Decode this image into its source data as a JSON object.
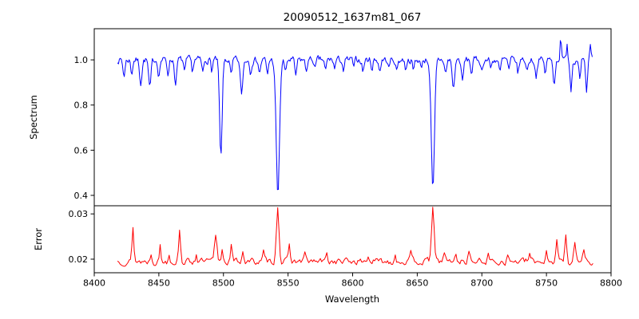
{
  "background": "#ffffff",
  "chart_data": [
    {
      "type": "line",
      "title": "20090512_1637m81_067",
      "ylabel": "Spectrum",
      "xlabel": "",
      "color": "#0000ff",
      "xlim": [
        8400,
        8800
      ],
      "ylim": [
        0.354,
        1.138
      ],
      "x_range": [
        8418,
        8786
      ],
      "sample_step": 0.75,
      "baseline": 1.0,
      "noise_amplitude": 0.013,
      "noise_seed": 7,
      "y_ticks": [
        {
          "v": 0.4,
          "label": "0.4"
        },
        {
          "v": 0.6,
          "label": "0.6"
        },
        {
          "v": 0.8,
          "label": "0.8"
        },
        {
          "v": 1.0,
          "label": "1.0"
        }
      ],
      "absorption_lines": [
        [
          8498.0,
          0.44,
          1.0
        ],
        [
          8542.1,
          0.6,
          1.3
        ],
        [
          8662.1,
          0.585,
          1.25
        ],
        [
          8423,
          0.07,
          0.8
        ],
        [
          8429,
          0.06,
          0.7
        ],
        [
          8436,
          0.1,
          0.9
        ],
        [
          8443,
          0.13,
          0.9
        ],
        [
          8450,
          0.07,
          0.7
        ],
        [
          8457,
          0.06,
          0.7
        ],
        [
          8463,
          0.11,
          0.8
        ],
        [
          8470,
          0.06,
          0.7
        ],
        [
          8476,
          0.05,
          0.7
        ],
        [
          8484,
          0.06,
          0.7
        ],
        [
          8491,
          0.05,
          0.6
        ],
        [
          8506,
          0.07,
          0.8
        ],
        [
          8514,
          0.15,
          1.0
        ],
        [
          8521,
          0.05,
          0.7
        ],
        [
          8528,
          0.06,
          0.7
        ],
        [
          8534,
          0.07,
          0.7
        ],
        [
          8548,
          0.06,
          0.7
        ],
        [
          8556,
          0.07,
          0.8
        ],
        [
          8564,
          0.05,
          0.7
        ],
        [
          8571,
          0.04,
          0.7
        ],
        [
          8579,
          0.05,
          0.7
        ],
        [
          8586,
          0.04,
          0.6
        ],
        [
          8593,
          0.05,
          0.7
        ],
        [
          8601,
          0.04,
          0.6
        ],
        [
          8608,
          0.05,
          0.7
        ],
        [
          8615,
          0.04,
          0.6
        ],
        [
          8621,
          0.05,
          0.7
        ],
        [
          8628,
          0.04,
          0.6
        ],
        [
          8634,
          0.05,
          0.7
        ],
        [
          8641,
          0.04,
          0.6
        ],
        [
          8647,
          0.05,
          0.7
        ],
        [
          8653,
          0.04,
          0.6
        ],
        [
          8672,
          0.06,
          0.8
        ],
        [
          8678,
          0.13,
          0.9
        ],
        [
          8685,
          0.1,
          0.8
        ],
        [
          8692,
          0.06,
          0.7
        ],
        [
          8700,
          0.05,
          0.7
        ],
        [
          8707,
          0.04,
          0.6
        ],
        [
          8714,
          0.06,
          0.7
        ],
        [
          8721,
          0.05,
          0.7
        ],
        [
          8728,
          0.06,
          0.7
        ],
        [
          8735,
          0.05,
          0.7
        ],
        [
          8742,
          0.07,
          0.8
        ],
        [
          8749,
          0.06,
          0.7
        ],
        [
          8756,
          0.1,
          0.8
        ],
        [
          8761,
          -0.11,
          0.5
        ],
        [
          8766,
          -0.08,
          0.5
        ],
        [
          8769,
          0.13,
          0.7
        ],
        [
          8776,
          0.08,
          0.6
        ],
        [
          8781,
          0.15,
          0.8
        ],
        [
          8784,
          -0.05,
          0.5
        ]
      ]
    },
    {
      "type": "line",
      "title": "",
      "ylabel": "Error",
      "xlabel": "Wavelength",
      "color": "#ff0000",
      "xlim": [
        8400,
        8800
      ],
      "ylim": [
        0.017,
        0.0318
      ],
      "x_range": [
        8418,
        8786
      ],
      "sample_step": 1.0,
      "baseline": 0.0195,
      "noise_amplitude": 0.0006,
      "noise_seed": 13,
      "x_ticks": [
        {
          "v": 8400,
          "label": "8400"
        },
        {
          "v": 8450,
          "label": "8450"
        },
        {
          "v": 8500,
          "label": "8500"
        },
        {
          "v": 8550,
          "label": "8550"
        },
        {
          "v": 8600,
          "label": "8600"
        },
        {
          "v": 8650,
          "label": "8650"
        },
        {
          "v": 8700,
          "label": "8700"
        },
        {
          "v": 8750,
          "label": "8750"
        },
        {
          "v": 8800,
          "label": "8800"
        }
      ],
      "y_ticks": [
        {
          "v": 0.02,
          "label": "0.02"
        },
        {
          "v": 0.03,
          "label": "0.03"
        }
      ],
      "peaks": [
        [
          8430,
          0.0075,
          0.7
        ],
        [
          8444,
          0.002,
          0.6
        ],
        [
          8451,
          0.0035,
          0.6
        ],
        [
          8458,
          0.002,
          0.6
        ],
        [
          8466,
          0.0075,
          0.7
        ],
        [
          8479,
          0.002,
          0.6
        ],
        [
          8494,
          0.0055,
          0.9
        ],
        [
          8499,
          0.003,
          0.6
        ],
        [
          8506,
          0.0035,
          0.7
        ],
        [
          8515,
          0.0025,
          0.7
        ],
        [
          8531,
          0.002,
          0.6
        ],
        [
          8542,
          0.0123,
          1.0
        ],
        [
          8551,
          0.0032,
          0.7
        ],
        [
          8563,
          0.002,
          0.6
        ],
        [
          8580,
          0.0015,
          0.6
        ],
        [
          8612,
          0.0015,
          0.6
        ],
        [
          8633,
          0.0018,
          0.6
        ],
        [
          8645,
          0.0015,
          0.6
        ],
        [
          8662,
          0.0118,
          1.0
        ],
        [
          8671,
          0.0022,
          0.7
        ],
        [
          8680,
          0.0018,
          0.6
        ],
        [
          8690,
          0.0025,
          0.7
        ],
        [
          8705,
          0.0015,
          0.6
        ],
        [
          8720,
          0.0015,
          0.6
        ],
        [
          8737,
          0.0018,
          0.6
        ],
        [
          8750,
          0.0025,
          0.7
        ],
        [
          8758,
          0.0045,
          0.8
        ],
        [
          8765,
          0.0055,
          0.8
        ],
        [
          8772,
          0.004,
          0.8
        ],
        [
          8779,
          0.003,
          0.7
        ]
      ]
    }
  ]
}
